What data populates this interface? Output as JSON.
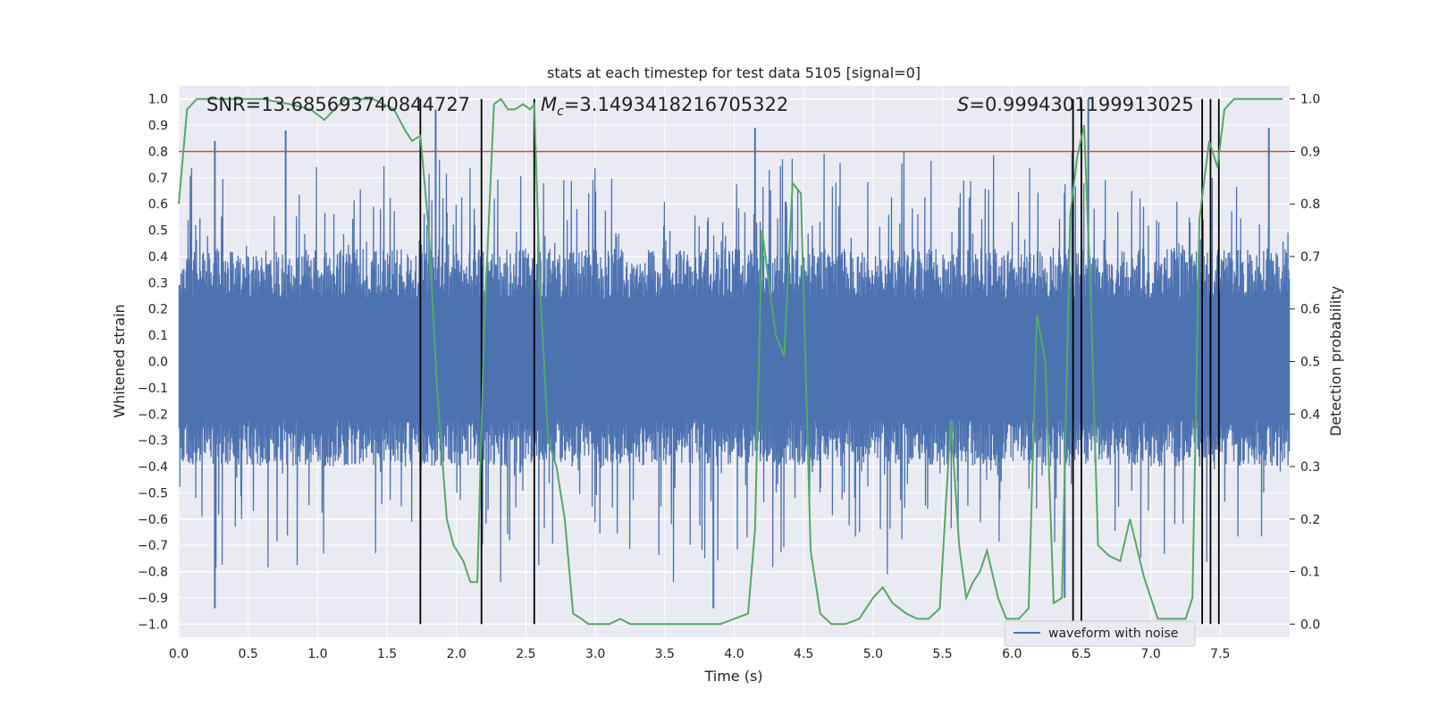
{
  "chart_data": {
    "type": "line",
    "title": "stats at each timestep for test data 5105 [signal=0]",
    "xlabel": "Time (s)",
    "ylabel": "Whitened strain",
    "y2label": "Detection probability",
    "xlim": [
      0,
      8
    ],
    "ylim": [
      -1.05,
      1.05
    ],
    "y2lim": [
      -0.025,
      1.025
    ],
    "grid": true,
    "x_ticks": [
      "0.0",
      "0.5",
      "1.0",
      "1.5",
      "2.0",
      "2.5",
      "3.0",
      "3.5",
      "4.0",
      "4.5",
      "5.0",
      "5.5",
      "6.0",
      "6.5",
      "7.0",
      "7.5"
    ],
    "y_ticks": [
      "1.0",
      "0.9",
      "0.8",
      "0.7",
      "0.6",
      "0.5",
      "0.4",
      "0.3",
      "0.2",
      "0.1",
      "0.0",
      "−0.1",
      "−0.2",
      "−0.3",
      "−0.4",
      "−0.5",
      "−0.6",
      "−0.7",
      "−0.8",
      "−0.9",
      "−1.0"
    ],
    "y2_ticks": [
      "1.0",
      "0.9",
      "0.8",
      "0.7",
      "0.6",
      "0.5",
      "0.4",
      "0.3",
      "0.2",
      "0.1",
      "0.0"
    ],
    "annotations": {
      "snr": "SNR=13.685693740844727",
      "mc": "=3.1493418216705322",
      "mc_symbol": "M",
      "mc_sub": "c",
      "s": "=0.9994301199913025",
      "s_symbol": "S"
    },
    "legend": {
      "label": "waveform with noise",
      "position": "lower-right"
    },
    "threshold": {
      "value": 0.9,
      "axis": "right",
      "color": "#c44e52"
    },
    "detection_markers": [
      1.74,
      2.18,
      2.56,
      6.44,
      6.5,
      7.37,
      7.43,
      7.49
    ],
    "waveform": {
      "name": "waveform with noise",
      "color": "#4c72b0",
      "samples": 1600,
      "seed": 5105,
      "envelope": [
        0.43,
        -0.4
      ],
      "peak_high": 0.84,
      "peak_low": -0.85,
      "spikes": [
        {
          "x": 0.26,
          "y": 0.84
        },
        {
          "x": 0.26,
          "y": -0.94
        },
        {
          "x": 0.77,
          "y": 0.88
        },
        {
          "x": 1.85,
          "y": 0.96
        },
        {
          "x": 3.85,
          "y": -0.94
        },
        {
          "x": 4.15,
          "y": 0.89
        },
        {
          "x": 6.55,
          "y": 1.0
        },
        {
          "x": 7.85,
          "y": 0.89
        },
        {
          "x": 6.38,
          "y": -0.9
        }
      ]
    },
    "series": [
      {
        "name": "",
        "axis": "right",
        "color": "#55a868",
        "x": [
          0.0,
          0.06,
          0.13,
          0.2,
          0.4,
          0.6,
          0.8,
          0.95,
          1.05,
          1.12,
          1.2,
          1.3,
          1.4,
          1.55,
          1.63,
          1.68,
          1.74,
          1.8,
          1.86,
          1.93,
          1.98,
          2.05,
          2.1,
          2.15,
          2.2,
          2.27,
          2.32,
          2.37,
          2.42,
          2.48,
          2.53,
          2.56,
          2.6,
          2.66,
          2.72,
          2.78,
          2.84,
          2.9,
          2.95,
          3.0,
          3.1,
          3.18,
          3.25,
          3.35,
          3.5,
          3.7,
          3.9,
          4.1,
          4.15,
          4.2,
          4.25,
          4.3,
          4.36,
          4.42,
          4.48,
          4.55,
          4.62,
          4.7,
          4.8,
          4.9,
          5.0,
          5.07,
          5.14,
          5.24,
          5.32,
          5.4,
          5.48,
          5.56,
          5.62,
          5.67,
          5.72,
          5.77,
          5.82,
          5.9,
          5.96,
          6.05,
          6.12,
          6.18,
          6.24,
          6.3,
          6.36,
          6.42,
          6.47,
          6.52,
          6.57,
          6.62,
          6.7,
          6.78,
          6.85,
          6.95,
          7.05,
          7.18,
          7.25,
          7.3,
          7.35,
          7.42,
          7.48,
          7.53,
          7.6,
          7.75,
          7.85,
          7.95
        ],
        "y": [
          0.8,
          0.98,
          1.0,
          1.0,
          1.0,
          1.0,
          0.99,
          0.98,
          0.96,
          0.98,
          1.0,
          1.0,
          1.0,
          0.98,
          0.94,
          0.92,
          0.93,
          0.75,
          0.45,
          0.2,
          0.15,
          0.12,
          0.08,
          0.08,
          0.57,
          0.99,
          1.0,
          0.98,
          0.98,
          0.99,
          0.98,
          0.99,
          0.65,
          0.35,
          0.3,
          0.2,
          0.02,
          0.01,
          0.0,
          0.0,
          0.0,
          0.01,
          0.0,
          0.0,
          0.0,
          0.0,
          0.0,
          0.02,
          0.18,
          0.75,
          0.65,
          0.55,
          0.51,
          0.84,
          0.82,
          0.14,
          0.02,
          0.0,
          0.0,
          0.01,
          0.05,
          0.07,
          0.04,
          0.02,
          0.01,
          0.01,
          0.03,
          0.39,
          0.15,
          0.05,
          0.08,
          0.1,
          0.14,
          0.05,
          0.01,
          0.01,
          0.03,
          0.59,
          0.5,
          0.04,
          0.05,
          0.78,
          0.89,
          0.95,
          0.6,
          0.15,
          0.13,
          0.12,
          0.2,
          0.09,
          0.01,
          0.01,
          0.01,
          0.05,
          0.77,
          0.92,
          0.87,
          0.98,
          1.0,
          1.0,
          1.0,
          1.0
        ]
      }
    ]
  }
}
